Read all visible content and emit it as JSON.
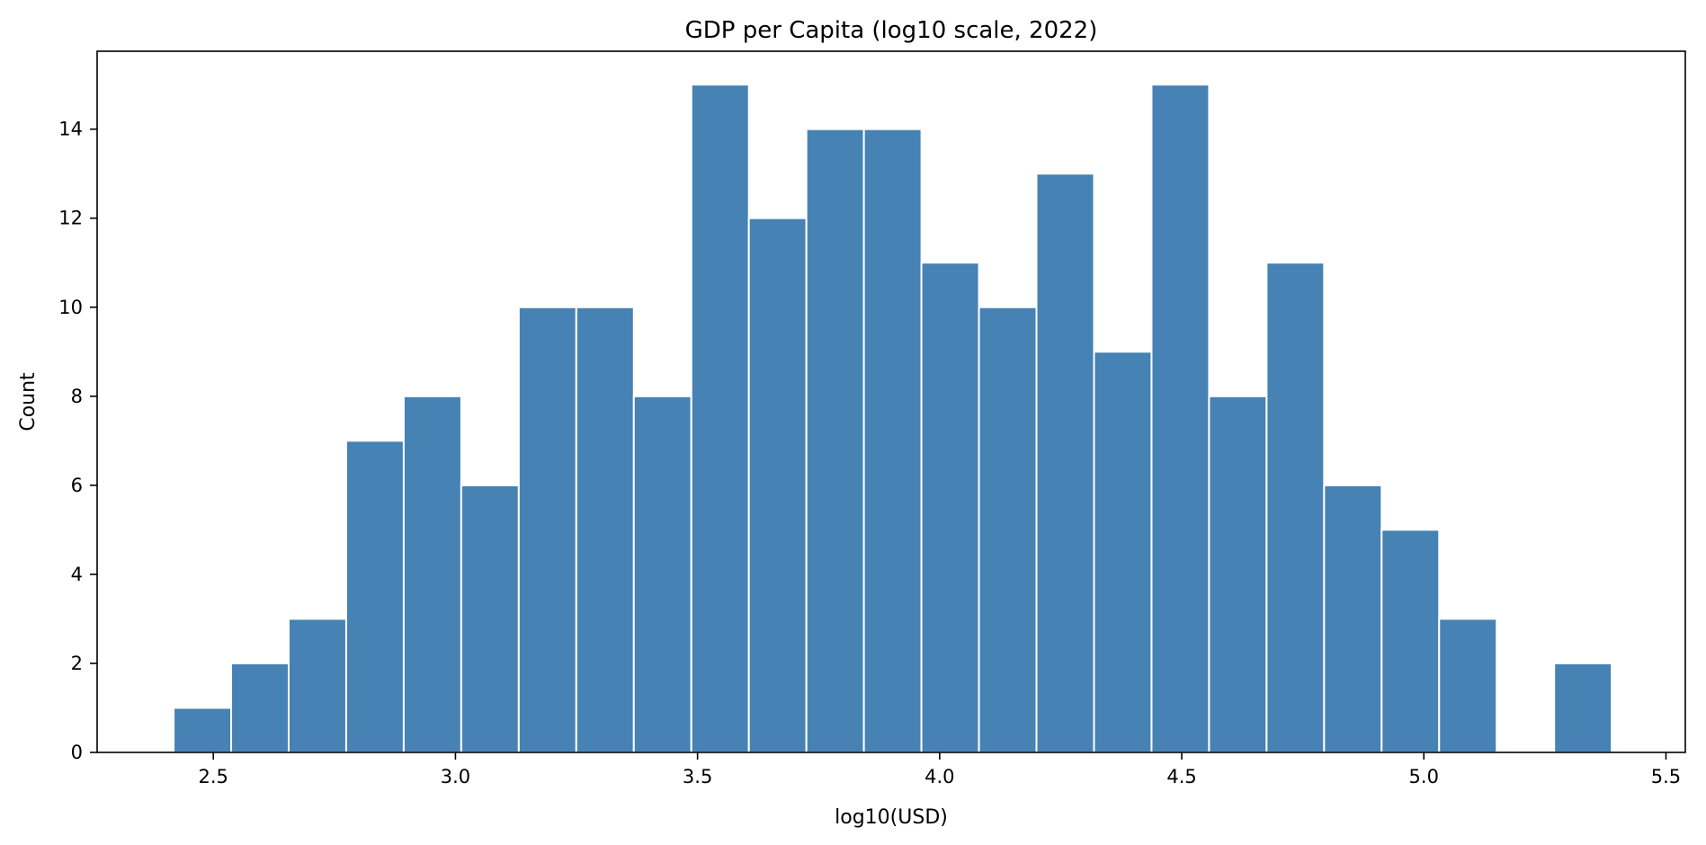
{
  "chart_data": {
    "type": "bar",
    "title": "GDP per Capita (log10 scale, 2022)",
    "xlabel": "log10(USD)",
    "ylabel": "Count",
    "xlim": [
      2.26,
      5.54
    ],
    "ylim": [
      0,
      15.75
    ],
    "bin_start": 2.418,
    "bin_width": 0.1188,
    "counts": [
      1,
      2,
      3,
      7,
      8,
      6,
      10,
      10,
      8,
      15,
      12,
      14,
      14,
      11,
      10,
      13,
      9,
      15,
      8,
      11,
      6,
      5,
      3,
      0,
      2
    ],
    "x_ticks": [
      "2.5",
      "3.0",
      "3.5",
      "4.0",
      "4.5",
      "5.0",
      "5.5"
    ],
    "y_ticks": [
      "0",
      "2",
      "4",
      "6",
      "8",
      "10",
      "12",
      "14"
    ],
    "bar_color": "#4682b4",
    "bar_edge_color": "#ffffff",
    "grid": false,
    "legend": "none"
  }
}
